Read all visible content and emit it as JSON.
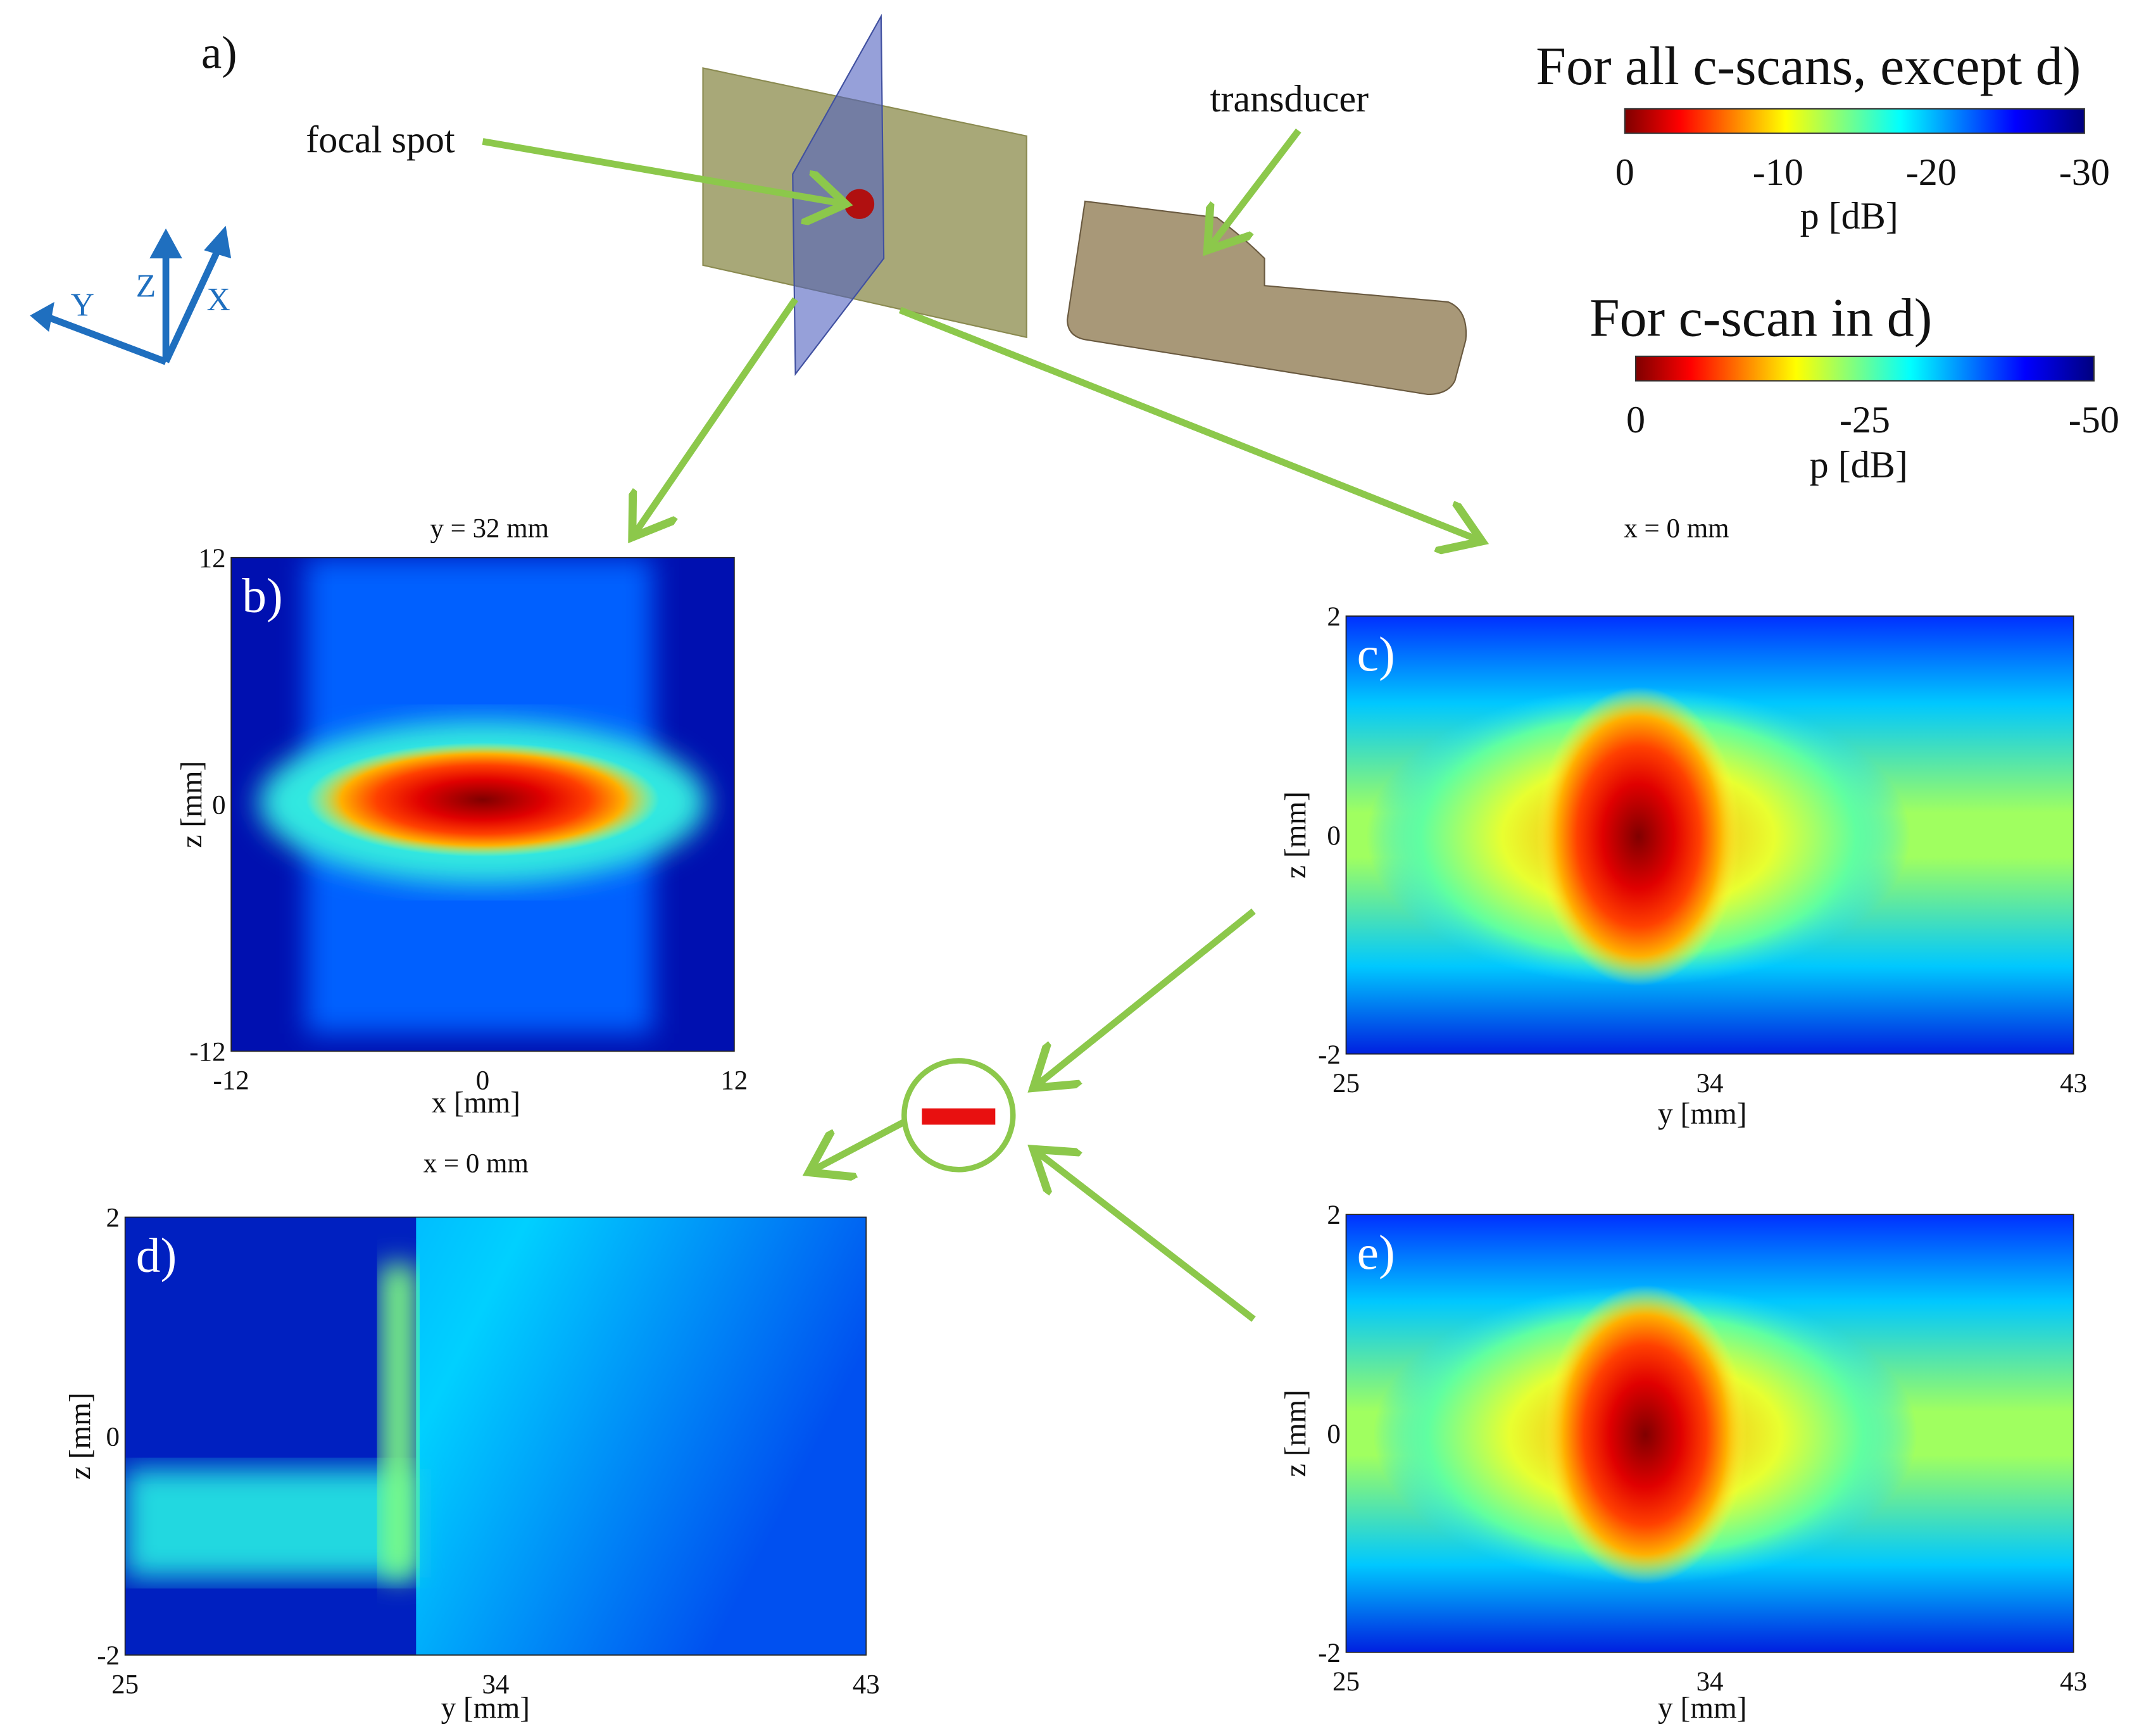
{
  "figure_label": "a)",
  "axis_triad": {
    "y": "Y",
    "z": "Z",
    "x": "X"
  },
  "callouts": {
    "focal_spot": "focal spot",
    "transducer": "transducer"
  },
  "colorbars": [
    {
      "title": "For all c-scans, except d)",
      "ticks": [
        0,
        -10,
        -20,
        -30
      ],
      "label": "p [dB]"
    },
    {
      "title": "For c-scan in d)",
      "ticks": [
        0,
        -25,
        -50
      ],
      "label": "p [dB]"
    }
  ],
  "panels": [
    {
      "label": "b)",
      "title": "y = 32 mm",
      "xticks": [
        -12,
        0,
        12
      ],
      "yticks": [
        12,
        0,
        -12
      ],
      "xlabel": "x [mm]",
      "ylabel": "z [mm]"
    },
    {
      "label": "c)",
      "title": "x = 0 mm",
      "xticks": [
        25,
        34,
        43
      ],
      "yticks": [
        2,
        0,
        -2
      ],
      "xlabel": "y [mm]",
      "ylabel": "z [mm]"
    },
    {
      "label": "d)",
      "title": "x = 0 mm",
      "xticks": [
        25,
        34,
        43
      ],
      "yticks": [
        2,
        0,
        -2
      ],
      "xlabel": "y [mm]",
      "ylabel": "z [mm]"
    },
    {
      "label": "e)",
      "xticks": [
        25,
        34,
        43
      ],
      "yticks": [
        2,
        0,
        -2
      ],
      "xlabel": "y [mm]",
      "ylabel": "z [mm]"
    }
  ]
}
